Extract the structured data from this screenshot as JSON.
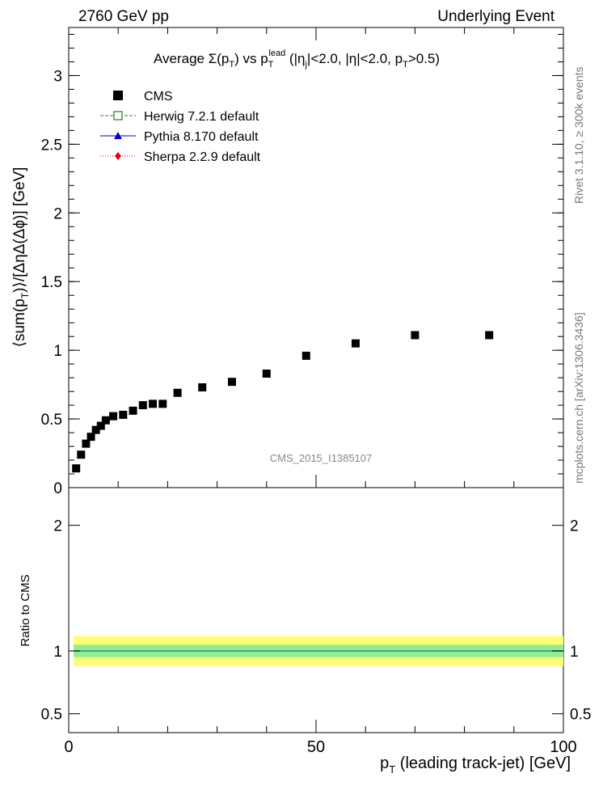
{
  "header": {
    "left": "2760 GeV pp",
    "right": "Underlying Event"
  },
  "side_labels": {
    "right_top": "Rivet 3.1.10, ≥ 300k events",
    "right_bottom": "mcplots.cern.ch [arXiv:1306.3436]"
  },
  "watermark": "CMS_2015_I1385107",
  "chart_data": [
    {
      "type": "scatter",
      "panel": "main",
      "title": "Average Σ(p_T) vs p_T^lead (|η_j|<2.0, |η|<2.0, p_T>0.5)",
      "ylabel": "⟨sum(p_T)⟩/[ΔηΔ(Δϕ)] [GeV]",
      "xlabel": "p_T (leading track-jet) [GeV]",
      "xlim": [
        0,
        100
      ],
      "ylim": [
        0,
        3.35
      ],
      "y_ticks": [
        0,
        0.5,
        1,
        1.5,
        2,
        2.5,
        3
      ],
      "x_ticks": [
        0,
        50,
        100
      ],
      "legend_position": "top-left",
      "series": [
        {
          "name": "CMS",
          "color": "#000000",
          "marker": "filled-square",
          "x": [
            1.5,
            2.5,
            3.5,
            4.5,
            5.5,
            6.5,
            7.5,
            9,
            11,
            13,
            15,
            17,
            19,
            22,
            27,
            33,
            40,
            48,
            58,
            70,
            85
          ],
          "values": [
            0.14,
            0.24,
            0.32,
            0.37,
            0.42,
            0.45,
            0.49,
            0.52,
            0.53,
            0.56,
            0.6,
            0.61,
            0.61,
            0.69,
            0.73,
            0.77,
            0.83,
            0.96,
            1.05,
            1.11,
            1.11
          ]
        }
      ]
    }
  ],
  "legend": [
    {
      "name": "CMS",
      "color": "#000000",
      "marker": "filled-square"
    },
    {
      "name": "Herwig 7.2.1 default",
      "color": "#2a8a2a",
      "marker": "open-square"
    },
    {
      "name": "Pythia 8.170 default",
      "color": "#0000cc",
      "marker": "triangle"
    },
    {
      "name": "Sherpa 2.2.9 default",
      "color": "#ee0000",
      "marker": "diamond"
    }
  ],
  "ratio_panel": {
    "ylabel": "Ratio to CMS",
    "ylim": [
      0.35,
      2.3
    ],
    "y_ticks": [
      0.5,
      1,
      2
    ],
    "band_colors": {
      "inner": "#90ee90",
      "outer": "#ffff77"
    }
  }
}
